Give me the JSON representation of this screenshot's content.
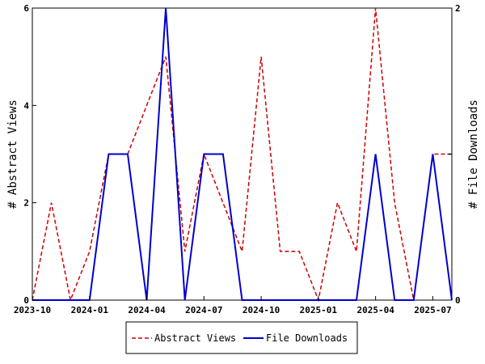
{
  "chart_data": {
    "type": "line",
    "x": [
      "2023-10",
      "2023-11",
      "2023-12",
      "2024-01",
      "2024-02",
      "2024-03",
      "2024-04",
      "2024-05",
      "2024-06",
      "2024-07",
      "2024-08",
      "2024-09",
      "2024-10",
      "2024-11",
      "2024-12",
      "2025-01",
      "2025-02",
      "2025-03",
      "2025-04",
      "2025-05",
      "2025-06",
      "2025-07",
      "2025-08"
    ],
    "x_tick_labels": [
      "2023-10",
      "2024-01",
      "2024-04",
      "2024-07",
      "2024-10",
      "2025-01",
      "2025-04",
      "2025-07"
    ],
    "series": [
      {
        "name": "Abstract Views",
        "axis": "left",
        "color": "#cc0000",
        "style": "dashed",
        "values": [
          0,
          2,
          0,
          1,
          3,
          3,
          4,
          5,
          1,
          3,
          2,
          1,
          5,
          1,
          1,
          0,
          2,
          1,
          6,
          2,
          0,
          3,
          3
        ]
      },
      {
        "name": "File Downloads",
        "axis": "right",
        "color": "#0000cc",
        "style": "solid",
        "values": [
          0,
          0,
          0,
          0,
          1,
          1,
          0,
          2,
          0,
          1,
          1,
          0,
          0,
          0,
          0,
          0,
          0,
          0,
          1,
          0,
          0,
          1,
          0
        ]
      }
    ],
    "ylabel_left": "# Abstract Views",
    "ylabel_right": "# File Downloads",
    "ylim_left": [
      0,
      6
    ],
    "ylim_right": [
      0,
      2
    ],
    "y_ticks_left": [
      "0",
      "2",
      "4",
      "6"
    ],
    "y_ticks_right": [
      "0",
      "1",
      "2"
    ],
    "y_tick_labels_right": [
      "0",
      "",
      "2"
    ],
    "grid": false,
    "legend_position": "bottom-center"
  }
}
